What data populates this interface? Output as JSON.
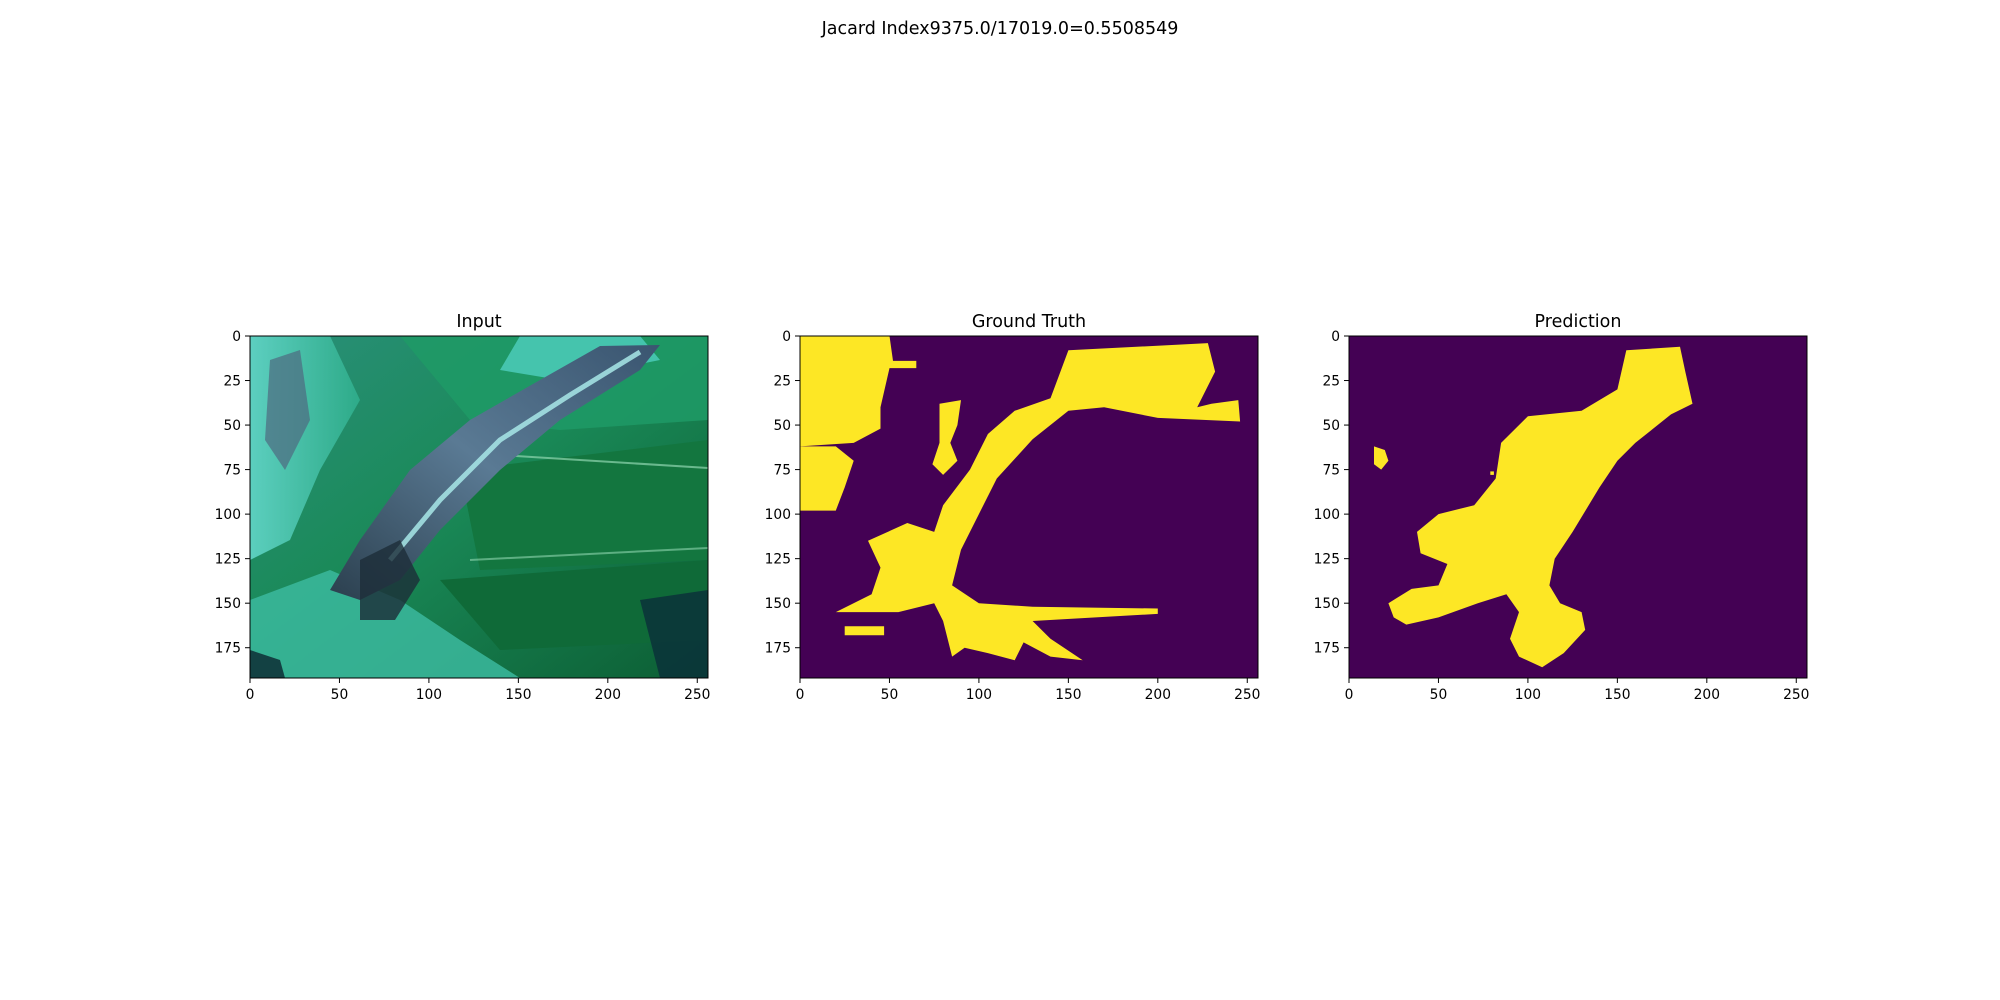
{
  "figure": {
    "suptitle": "Jacard Index9375.0/17019.0=0.5508549"
  },
  "colors": {
    "background": "#440154",
    "mask": "#fde725",
    "leaf_dark": "#0e6b3a",
    "leaf_mid": "#1f9a5e",
    "leaf_cyan": "#4fd0c0",
    "lesion": "#3d5a73"
  },
  "chart_data": [
    {
      "type": "image",
      "title": "Input",
      "xticks": [
        "0",
        "50",
        "100",
        "150",
        "200",
        "250"
      ],
      "yticks": [
        "0",
        "25",
        "50",
        "75",
        "100",
        "125",
        "150",
        "175"
      ],
      "xlim": [
        0,
        256
      ],
      "ylim": [
        192,
        0
      ],
      "content": "rgb photo of a green leaf with a diagonal grey lesion"
    },
    {
      "type": "image",
      "title": "Ground Truth",
      "xticks": [
        "0",
        "50",
        "100",
        "150",
        "200",
        "250"
      ],
      "yticks": [
        "0",
        "25",
        "50",
        "75",
        "100",
        "125",
        "150",
        "175"
      ],
      "xlim": [
        0,
        256
      ],
      "ylim": [
        192,
        0
      ],
      "content": "binary mask",
      "regions": [
        [
          [
            0,
            0
          ],
          [
            50,
            0
          ],
          [
            52,
            14
          ],
          [
            65,
            14
          ],
          [
            65,
            18
          ],
          [
            50,
            18
          ],
          [
            45,
            40
          ],
          [
            45,
            52
          ],
          [
            30,
            60
          ],
          [
            0,
            62
          ]
        ],
        [
          [
            0,
            62
          ],
          [
            20,
            62
          ],
          [
            30,
            70
          ],
          [
            25,
            85
          ],
          [
            20,
            98
          ],
          [
            0,
            98
          ]
        ],
        [
          [
            78,
            38
          ],
          [
            90,
            36
          ],
          [
            88,
            50
          ],
          [
            84,
            60
          ],
          [
            88,
            70
          ],
          [
            80,
            78
          ],
          [
            74,
            72
          ],
          [
            78,
            60
          ]
        ],
        [
          [
            150,
            8
          ],
          [
            228,
            4
          ],
          [
            232,
            20
          ],
          [
            222,
            40
          ],
          [
            230,
            38
          ],
          [
            245,
            36
          ],
          [
            246,
            48
          ],
          [
            200,
            46
          ],
          [
            170,
            40
          ],
          [
            150,
            42
          ],
          [
            130,
            58
          ],
          [
            110,
            80
          ],
          [
            100,
            100
          ],
          [
            90,
            120
          ],
          [
            85,
            140
          ],
          [
            100,
            150
          ],
          [
            130,
            152
          ],
          [
            200,
            153
          ],
          [
            200,
            156
          ],
          [
            130,
            160
          ],
          [
            140,
            170
          ],
          [
            158,
            182
          ],
          [
            140,
            180
          ],
          [
            125,
            172
          ],
          [
            120,
            182
          ],
          [
            105,
            178
          ],
          [
            92,
            175
          ],
          [
            85,
            180
          ],
          [
            80,
            160
          ],
          [
            75,
            150
          ],
          [
            55,
            155
          ],
          [
            20,
            155
          ],
          [
            40,
            145
          ],
          [
            45,
            130
          ],
          [
            38,
            115
          ],
          [
            60,
            105
          ],
          [
            75,
            110
          ],
          [
            80,
            95
          ],
          [
            95,
            75
          ],
          [
            105,
            55
          ],
          [
            120,
            42
          ],
          [
            140,
            35
          ]
        ],
        [
          [
            25,
            163
          ],
          [
            47,
            163
          ],
          [
            47,
            168
          ],
          [
            25,
            168
          ]
        ]
      ]
    },
    {
      "type": "image",
      "title": "Prediction",
      "xticks": [
        "0",
        "50",
        "100",
        "150",
        "200",
        "250"
      ],
      "yticks": [
        "0",
        "25",
        "50",
        "75",
        "100",
        "125",
        "150",
        "175"
      ],
      "xlim": [
        0,
        256
      ],
      "ylim": [
        192,
        0
      ],
      "content": "binary mask",
      "regions": [
        [
          [
            155,
            8
          ],
          [
            185,
            6
          ],
          [
            188,
            20
          ],
          [
            192,
            38
          ],
          [
            180,
            44
          ],
          [
            160,
            60
          ],
          [
            150,
            70
          ],
          [
            140,
            85
          ],
          [
            125,
            110
          ],
          [
            115,
            125
          ],
          [
            112,
            140
          ],
          [
            118,
            150
          ],
          [
            130,
            155
          ],
          [
            132,
            165
          ],
          [
            120,
            178
          ],
          [
            108,
            186
          ],
          [
            95,
            180
          ],
          [
            90,
            170
          ],
          [
            95,
            155
          ],
          [
            88,
            145
          ],
          [
            72,
            150
          ],
          [
            50,
            158
          ],
          [
            32,
            162
          ],
          [
            25,
            158
          ],
          [
            22,
            150
          ],
          [
            35,
            142
          ],
          [
            50,
            140
          ],
          [
            55,
            128
          ],
          [
            40,
            122
          ],
          [
            38,
            110
          ],
          [
            50,
            100
          ],
          [
            70,
            95
          ],
          [
            82,
            80
          ],
          [
            85,
            60
          ],
          [
            100,
            45
          ],
          [
            130,
            42
          ],
          [
            150,
            30
          ]
        ],
        [
          [
            14,
            62
          ],
          [
            20,
            64
          ],
          [
            22,
            70
          ],
          [
            18,
            75
          ],
          [
            14,
            72
          ]
        ],
        [
          [
            79,
            76
          ],
          [
            81,
            76
          ],
          [
            81,
            78
          ],
          [
            79,
            78
          ]
        ]
      ]
    }
  ]
}
